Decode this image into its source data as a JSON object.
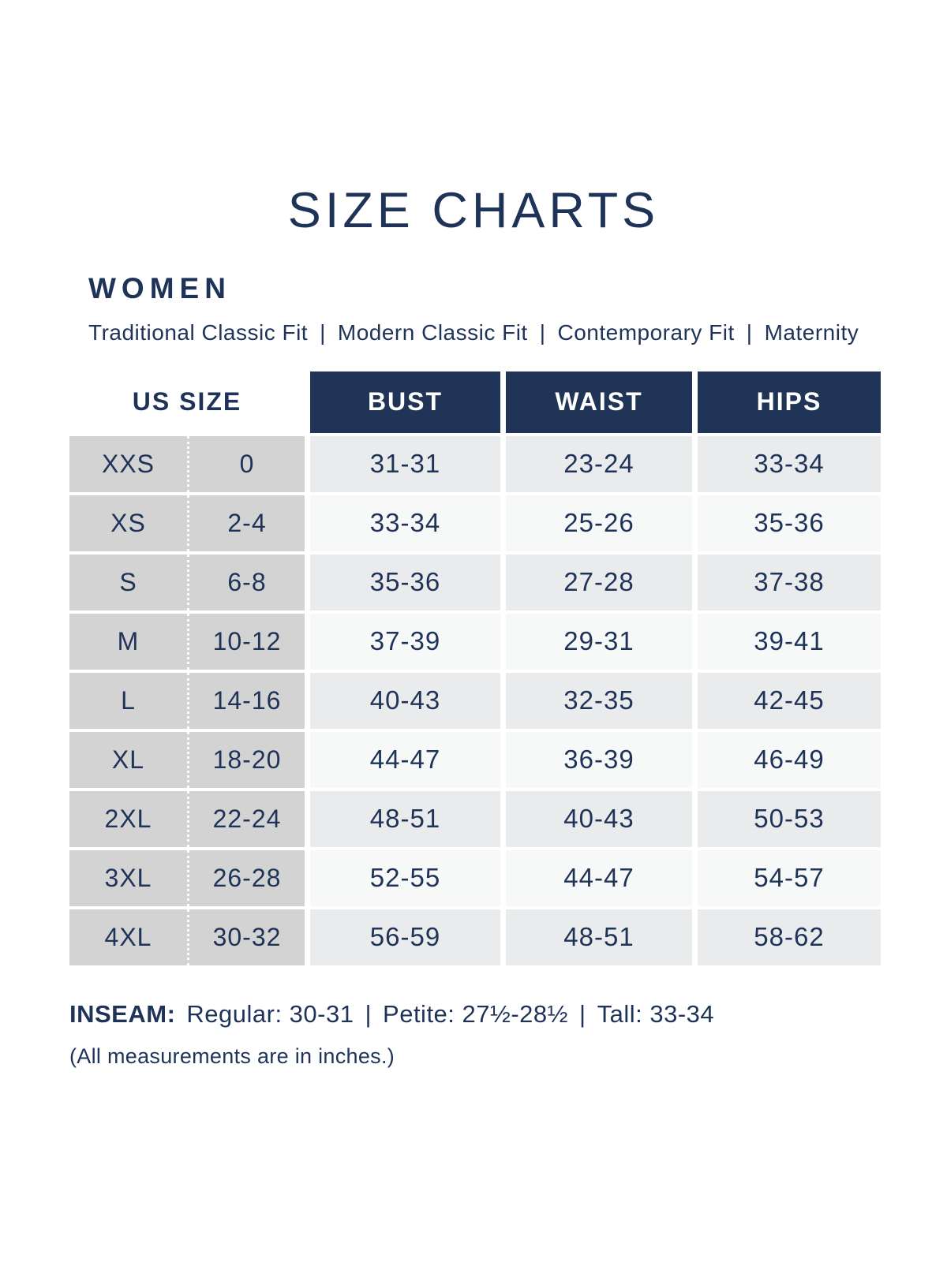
{
  "page": {
    "title": "SIZE CHARTS",
    "section": "WOMEN",
    "fits": [
      "Traditional Classic Fit",
      "Modern Classic Fit",
      "Contemporary Fit",
      "Maternity"
    ],
    "fit_separator": "|"
  },
  "table": {
    "headers": {
      "us_size": "US SIZE",
      "bust": "BUST",
      "waist": "WAIST",
      "hips": "HIPS"
    },
    "rows": [
      {
        "size": "XXS",
        "us": "0",
        "bust": "31-31",
        "waist": "23-24",
        "hips": "33-34"
      },
      {
        "size": "XS",
        "us": "2-4",
        "bust": "33-34",
        "waist": "25-26",
        "hips": "35-36"
      },
      {
        "size": "S",
        "us": "6-8",
        "bust": "35-36",
        "waist": "27-28",
        "hips": "37-38"
      },
      {
        "size": "M",
        "us": "10-12",
        "bust": "37-39",
        "waist": "29-31",
        "hips": "39-41"
      },
      {
        "size": "L",
        "us": "14-16",
        "bust": "40-43",
        "waist": "32-35",
        "hips": "42-45"
      },
      {
        "size": "XL",
        "us": "18-20",
        "bust": "44-47",
        "waist": "36-39",
        "hips": "46-49"
      },
      {
        "size": "2XL",
        "us": "22-24",
        "bust": "48-51",
        "waist": "40-43",
        "hips": "50-53"
      },
      {
        "size": "3XL",
        "us": "26-28",
        "bust": "52-55",
        "waist": "44-47",
        "hips": "54-57"
      },
      {
        "size": "4XL",
        "us": "30-32",
        "bust": "56-59",
        "waist": "48-51",
        "hips": "58-62"
      }
    ]
  },
  "inseam": {
    "label": "INSEAM:",
    "items": [
      "Regular: 30-31",
      "Petite: 27½-28½",
      "Tall: 33-34"
    ],
    "separator": "|"
  },
  "footnote": "(All measurements are in inches.)",
  "colors": {
    "navy": "#1e3357",
    "header_bg": "#1f3456",
    "size_col_bg": "#d3d3d4",
    "row_odd_bg": "#eaebec",
    "row_even_bg": "#f7f8f8"
  }
}
